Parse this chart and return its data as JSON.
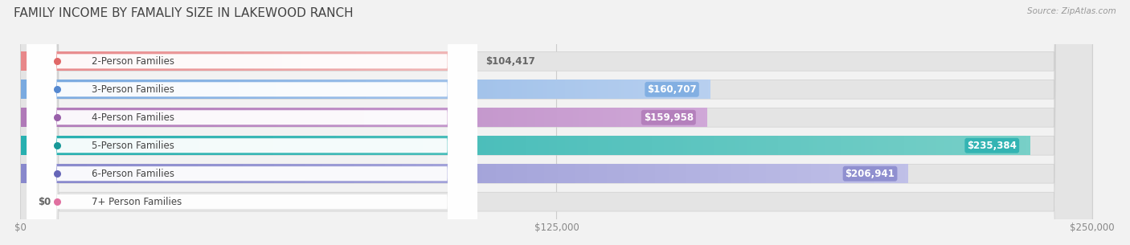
{
  "title": "FAMILY INCOME BY FAMALIY SIZE IN LAKEWOOD RANCH",
  "source": "Source: ZipAtlas.com",
  "categories": [
    "2-Person Families",
    "3-Person Families",
    "4-Person Families",
    "5-Person Families",
    "6-Person Families",
    "7+ Person Families"
  ],
  "values": [
    104417,
    160707,
    159958,
    235384,
    206941,
    0
  ],
  "value_labels": [
    "$104,417",
    "$160,707",
    "$159,958",
    "$235,384",
    "$206,941",
    "$0"
  ],
  "bar_colors_left": [
    "#e8888a",
    "#7aaae0",
    "#b07ab8",
    "#28b0b0",
    "#8888cc",
    "#f090b8"
  ],
  "bar_colors_right": [
    "#f0b8b8",
    "#b8d0f0",
    "#d0a8d8",
    "#78d0c8",
    "#c0c0e8",
    "#f8c8dc"
  ],
  "dot_colors": [
    "#e06868",
    "#5588d0",
    "#9960aa",
    "#189898",
    "#6666b8",
    "#e070a0"
  ],
  "xlim": [
    0,
    250000
  ],
  "xticks": [
    0,
    125000,
    250000
  ],
  "xtick_labels": [
    "$0",
    "$125,000",
    "$250,000"
  ],
  "bg_color": "#f2f2f2",
  "bar_bg_color": "#e4e4e4",
  "title_fontsize": 11,
  "label_fontsize": 8.5,
  "value_label_dark": [
    true,
    false,
    false,
    false,
    false,
    false
  ],
  "value_label_outside": [
    true,
    false,
    false,
    false,
    false,
    true
  ]
}
